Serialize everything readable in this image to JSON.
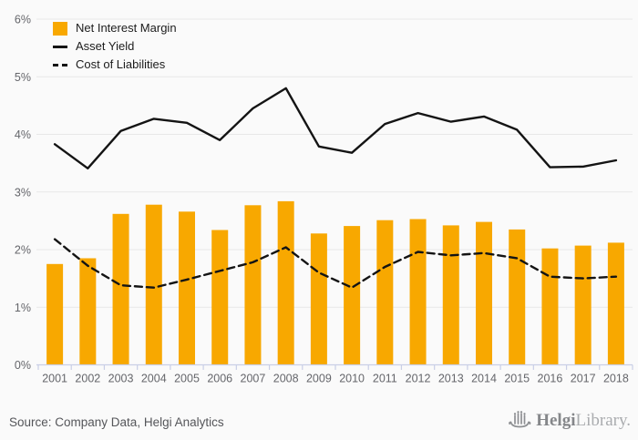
{
  "legend": {
    "items": [
      {
        "label": "Net Interest Margin",
        "swatch": "bar",
        "color": "#F8A800"
      },
      {
        "label": "Asset Yield",
        "swatch": "solid-line",
        "color": "#141414"
      },
      {
        "label": "Cost of Liabilities",
        "swatch": "dashed-line",
        "color": "#141414"
      }
    ]
  },
  "footer": {
    "source_text": "Source: Company Data, Helgi Analytics",
    "logo": {
      "icon": "helgi-ship-icon",
      "text_bold": "Helgi",
      "text_light": "Library."
    }
  },
  "colors": {
    "background": "#fafafa",
    "bar": "#F8A800",
    "line": "#141414",
    "grid": "#e8e8e8",
    "axis": "#c9cfe6",
    "tick_label": "#65666b",
    "source_text": "#55565a",
    "logo_gray": "#8d8f92",
    "logo_light": "#aaacaf"
  },
  "chart_data": {
    "type": "combo",
    "categories": [
      "2001",
      "2002",
      "2003",
      "2004",
      "2005",
      "2006",
      "2007",
      "2008",
      "2009",
      "2010",
      "2011",
      "2012",
      "2013",
      "2014",
      "2015",
      "2016",
      "2017",
      "2018"
    ],
    "series": [
      {
        "name": "Net Interest Margin",
        "type": "bar",
        "color": "#F8A800",
        "values": [
          1.75,
          1.85,
          2.62,
          2.78,
          2.66,
          2.34,
          2.77,
          2.84,
          2.28,
          2.41,
          2.51,
          2.53,
          2.42,
          2.48,
          2.35,
          2.02,
          2.07,
          2.12
        ]
      },
      {
        "name": "Asset Yield",
        "type": "line",
        "line_style": "solid",
        "color": "#141414",
        "values": [
          3.83,
          3.41,
          4.06,
          4.27,
          4.2,
          3.9,
          4.45,
          4.8,
          3.79,
          3.68,
          4.18,
          4.37,
          4.22,
          4.31,
          4.08,
          3.43,
          3.44,
          3.55
        ]
      },
      {
        "name": "Cost of Liabilities",
        "type": "line",
        "line_style": "dashed",
        "color": "#141414",
        "values": [
          2.18,
          1.72,
          1.38,
          1.34,
          1.48,
          1.63,
          1.78,
          2.04,
          1.6,
          1.34,
          1.7,
          1.96,
          1.9,
          1.94,
          1.85,
          1.53,
          1.5,
          1.53
        ]
      }
    ],
    "title": "",
    "xlabel": "",
    "ylabel": "",
    "ylim": [
      0,
      6
    ],
    "y_tick_labels": [
      "0%",
      "1%",
      "2%",
      "3%",
      "4%",
      "5%",
      "6%"
    ],
    "grid": true,
    "legend_position": "top-left"
  }
}
